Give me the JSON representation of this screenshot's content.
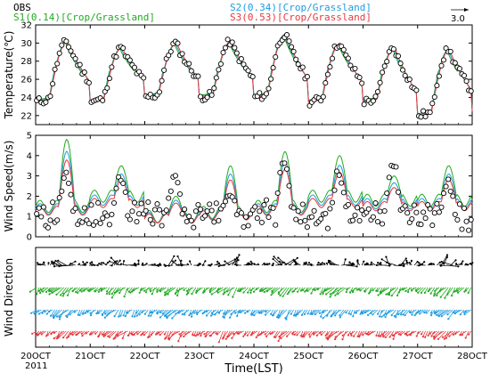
{
  "legend": {
    "obs": "OBS",
    "s1": "S1(0.14)[Crop/Grassland]",
    "s2": "S2(0.34)[Crop/Grassland]",
    "s3": "S3(0.53)[Crop/Grassland]",
    "ref_vector": "3.0"
  },
  "colors": {
    "obs": "#000000",
    "s1": "#22aa22",
    "s2": "#1e9be0",
    "s3": "#e8383d"
  },
  "chart_data": [
    {
      "type": "line",
      "panel": "temperature",
      "ylabel": "Temperature(℃)",
      "ylim": [
        21,
        32
      ],
      "yticks": [
        "22",
        "24",
        "26",
        "28",
        "30",
        "32"
      ],
      "x": [
        "20OCT",
        "21OCT",
        "22OCT",
        "23OCT",
        "24OCT",
        "25OCT",
        "26OCT",
        "27OCT",
        "28OCT"
      ],
      "daily_min": [
        23.5,
        23.5,
        24.0,
        24.0,
        24.0,
        23.5,
        23.5,
        22.0,
        22.5
      ],
      "daily_max": [
        30.2,
        29.5,
        30.0,
        30.2,
        31.0,
        30.0,
        29.5,
        29.3,
        29.0
      ],
      "series": [
        {
          "name": "OBS"
        },
        {
          "name": "S1(0.14)[Crop/Grassland]"
        },
        {
          "name": "S2(0.34)[Crop/Grassland]"
        },
        {
          "name": "S3(0.53)[Crop/Grassland]"
        }
      ]
    },
    {
      "type": "line",
      "panel": "wind_speed",
      "ylabel": "Wind  Speed(m/s)",
      "ylim": [
        0,
        5
      ],
      "yticks": [
        "0",
        "1",
        "2",
        "3",
        "4",
        "5"
      ],
      "daily_peak_s1": [
        4.8,
        3.5,
        2.0,
        3.5,
        4.2,
        4.0,
        3.0,
        3.5,
        4.7
      ],
      "daily_base_s1": [
        1.5,
        2.0,
        1.0,
        1.2,
        1.5,
        2.0,
        1.8,
        1.8,
        1.8
      ],
      "obs_peaks": [
        3.0,
        2.8,
        2.8,
        2.2,
        3.7,
        3.1,
        3.6,
        2.7,
        3.3
      ]
    },
    {
      "type": "scatter",
      "panel": "wind_direction",
      "ylabel": "Wind  Direction",
      "rows": [
        "OBS",
        "S1",
        "S2",
        "S3"
      ]
    }
  ],
  "xaxis": {
    "ticks": [
      "20OCT",
      "21OCT",
      "22OCT",
      "23OCT",
      "24OCT",
      "25OCT",
      "26OCT",
      "27OCT",
      "28OCT"
    ],
    "year": "2011",
    "label": "Time(LST)"
  }
}
